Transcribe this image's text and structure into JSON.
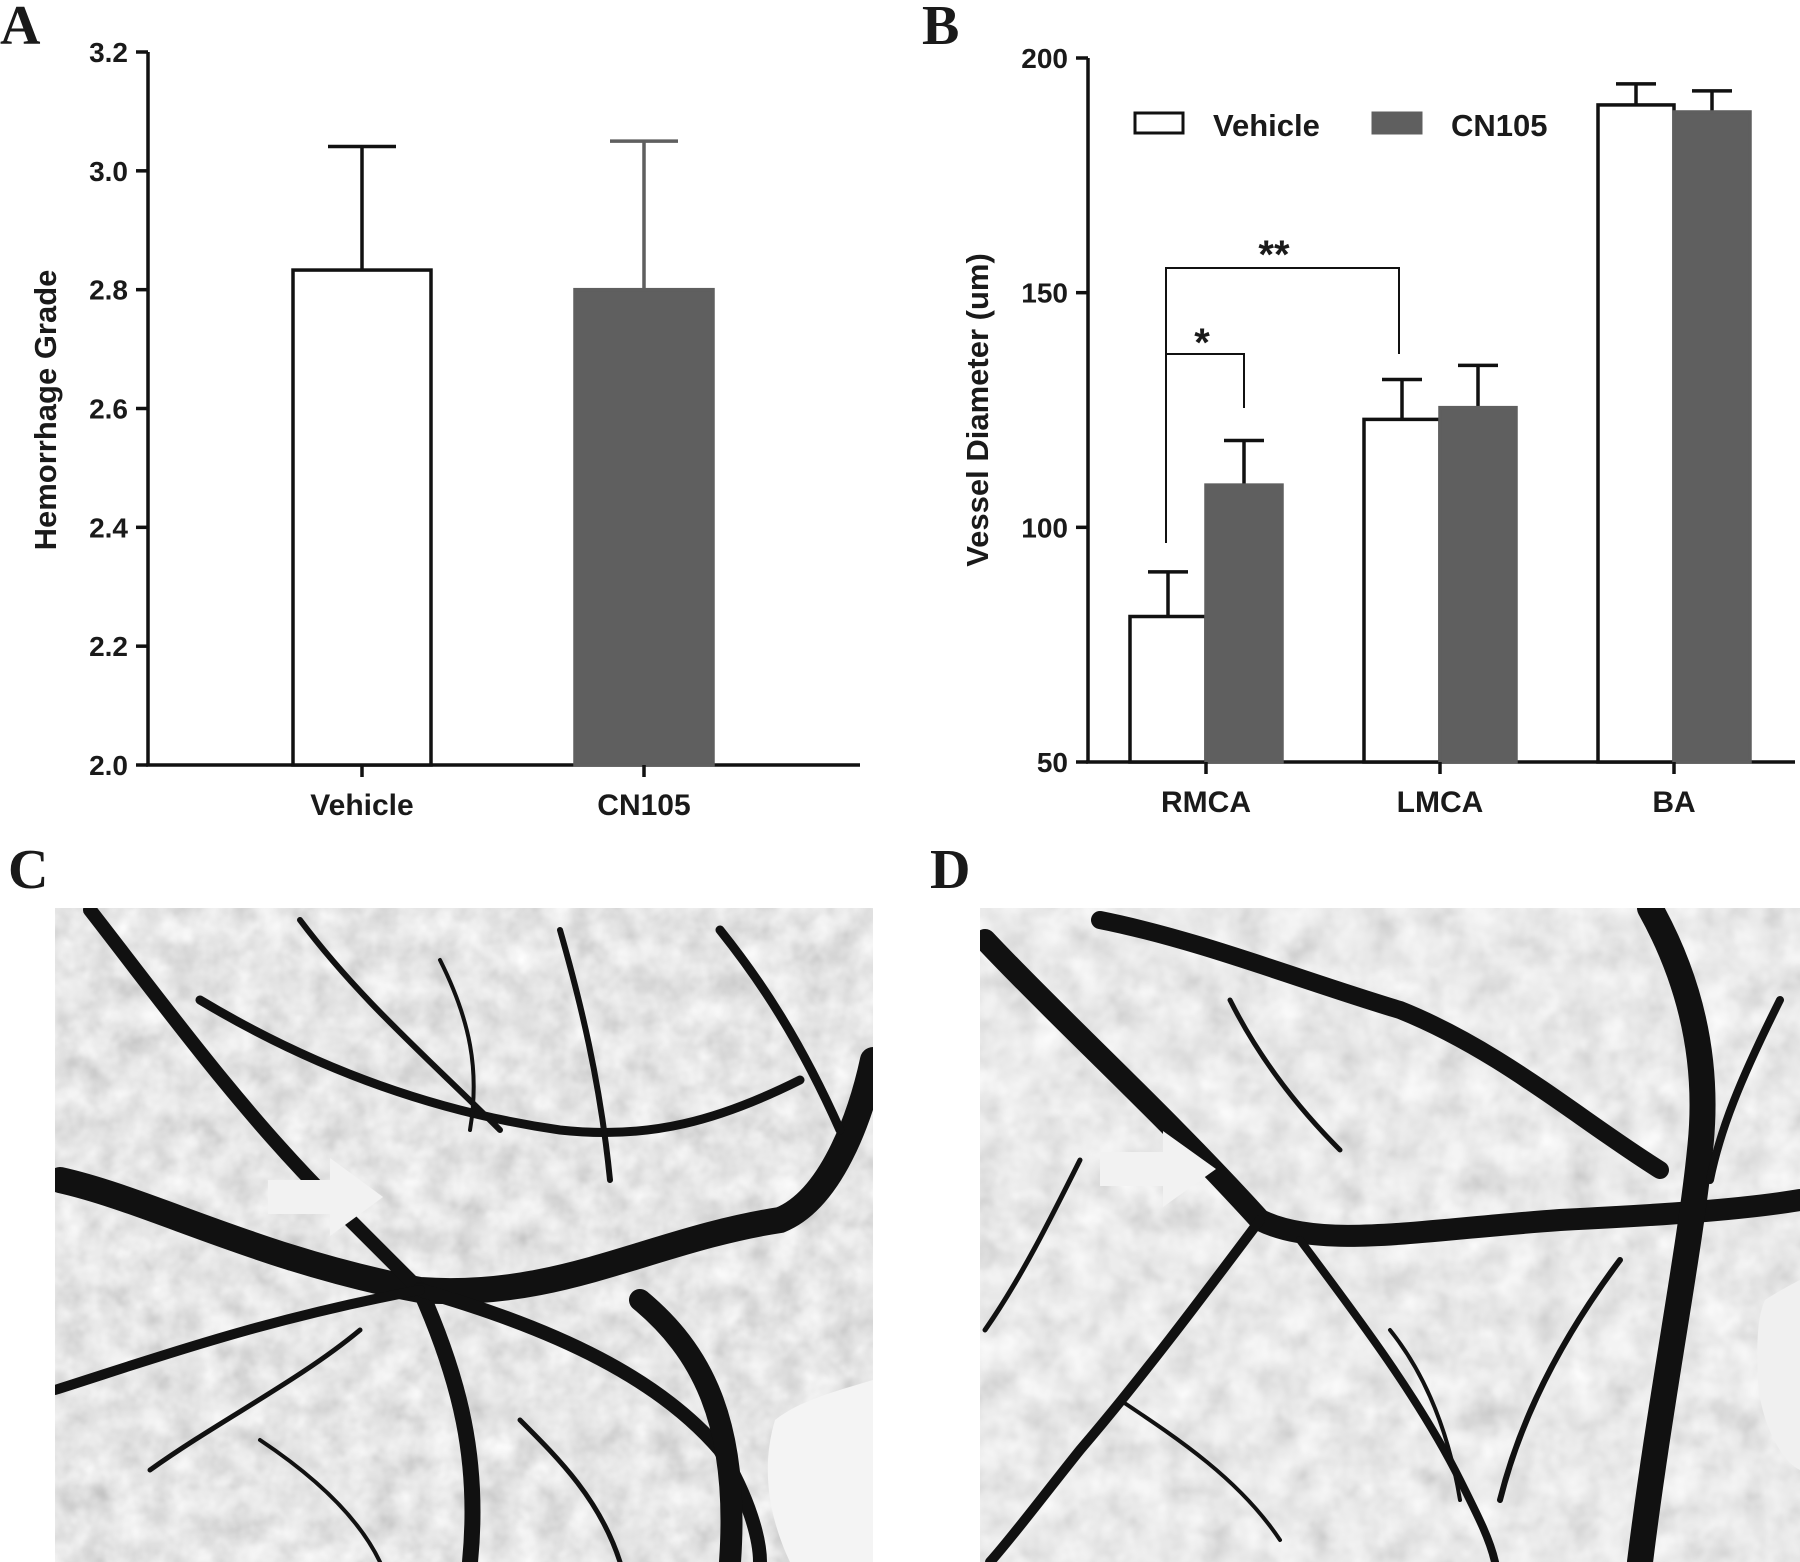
{
  "panels": {
    "A": "A",
    "B": "B",
    "C": "C",
    "D": "D"
  },
  "colors": {
    "vehicle_fill": "#ffffff",
    "cn105_fill": "#5f5f5f",
    "stroke": "#111111"
  },
  "chart_data": [
    {
      "panel": "A",
      "type": "bar",
      "categories": [
        "Vehicle",
        "CN105"
      ],
      "values": [
        2.833,
        2.8
      ],
      "error": [
        0.208,
        0.25
      ],
      "ylabel": "Hemorrhage Grade",
      "xlabel": "",
      "ylim": [
        2.0,
        3.2
      ],
      "yticks": [
        "2.0",
        "2.2",
        "2.4",
        "2.6",
        "2.8",
        "3.0",
        "3.2"
      ],
      "bar_colors": [
        "#ffffff",
        "#5f5f5f"
      ],
      "grid": false
    },
    {
      "panel": "B",
      "type": "bar",
      "categories": [
        "RMCA",
        "LMCA",
        "BA"
      ],
      "series": [
        {
          "name": "Vehicle",
          "values": [
            81,
            123,
            190
          ],
          "error": [
            9.5,
            8.5,
            4.5
          ]
        },
        {
          "name": "CN105",
          "values": [
            109,
            125.5,
            188.5
          ],
          "error": [
            9.5,
            9,
            4.5
          ]
        }
      ],
      "ylabel": "Vessel Diameter (um)",
      "xlabel": "",
      "ylim": [
        50,
        200
      ],
      "yticks": [
        "50",
        "100",
        "150",
        "200"
      ],
      "legend": {
        "position": "top",
        "entries": [
          "Vehicle",
          "CN105"
        ]
      },
      "annotations": [
        {
          "label": "*",
          "from": "RMCA Vehicle",
          "to": "RMCA CN105"
        },
        {
          "label": "**",
          "from": "RMCA Vehicle",
          "to": "LMCA Vehicle"
        }
      ],
      "grid": false
    }
  ],
  "images": [
    {
      "panel": "C",
      "arrow": "right",
      "icon": "arrow-right-icon"
    },
    {
      "panel": "D",
      "arrow": "right",
      "icon": "arrow-right-icon"
    }
  ]
}
